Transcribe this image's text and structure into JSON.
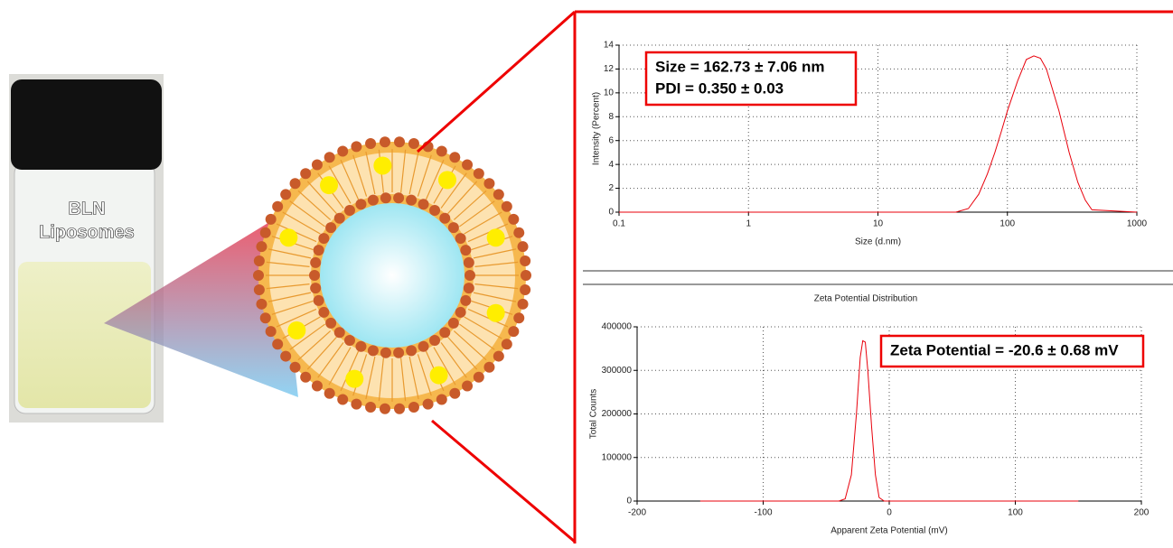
{
  "photo_label": [
    "BLN",
    "Liposomes"
  ],
  "chart_data": [
    {
      "type": "line",
      "xscale": "log",
      "grid": true,
      "color": "#e8000b",
      "x_label": "Size (d.nm)",
      "y_label": "Intensity (Percent)",
      "annotations": [
        "Size = 162.73 ± 7.06 nm",
        "PDI = 0.350 ± 0.03"
      ],
      "x": [
        0.1,
        1,
        10,
        40,
        50,
        60,
        70,
        80,
        90,
        100,
        120,
        140,
        160,
        180,
        200,
        250,
        300,
        350,
        400,
        450,
        1000
      ],
      "values": [
        0,
        0,
        0,
        0,
        0.3,
        1.5,
        3.2,
        5,
        6.8,
        8.5,
        11,
        12.8,
        13.1,
        12.9,
        12,
        8.5,
        5,
        2.5,
        1,
        0.2,
        0
      ],
      "xlim": [
        0.1,
        1000
      ],
      "xticks": [
        0.1,
        1,
        10,
        100,
        1000
      ],
      "ylim": [
        0,
        14
      ],
      "yticks": [
        0,
        2,
        4,
        6,
        8,
        10,
        12,
        14
      ]
    },
    {
      "type": "line",
      "grid": true,
      "color": "#e8000b",
      "title": "Zeta Potential Distribution",
      "x_label": "Apparent Zeta Potential (mV)",
      "y_label": "Total Counts",
      "annotations": [
        "Zeta Potential = -20.6 ± 0.68 mV"
      ],
      "x": [
        -150,
        -40,
        -35,
        -30,
        -26,
        -23,
        -21,
        -19,
        -17,
        -14,
        -11,
        -8,
        -4,
        150
      ],
      "values": [
        0,
        0,
        5000,
        60000,
        200000,
        330000,
        368000,
        365000,
        300000,
        170000,
        60000,
        8000,
        0,
        0
      ],
      "xlim": [
        -200,
        200
      ],
      "xticks": [
        -200,
        -100,
        0,
        100,
        200
      ],
      "ylim": [
        0,
        400000
      ],
      "yticks": [
        0,
        100000,
        200000,
        300000,
        400000
      ]
    }
  ]
}
